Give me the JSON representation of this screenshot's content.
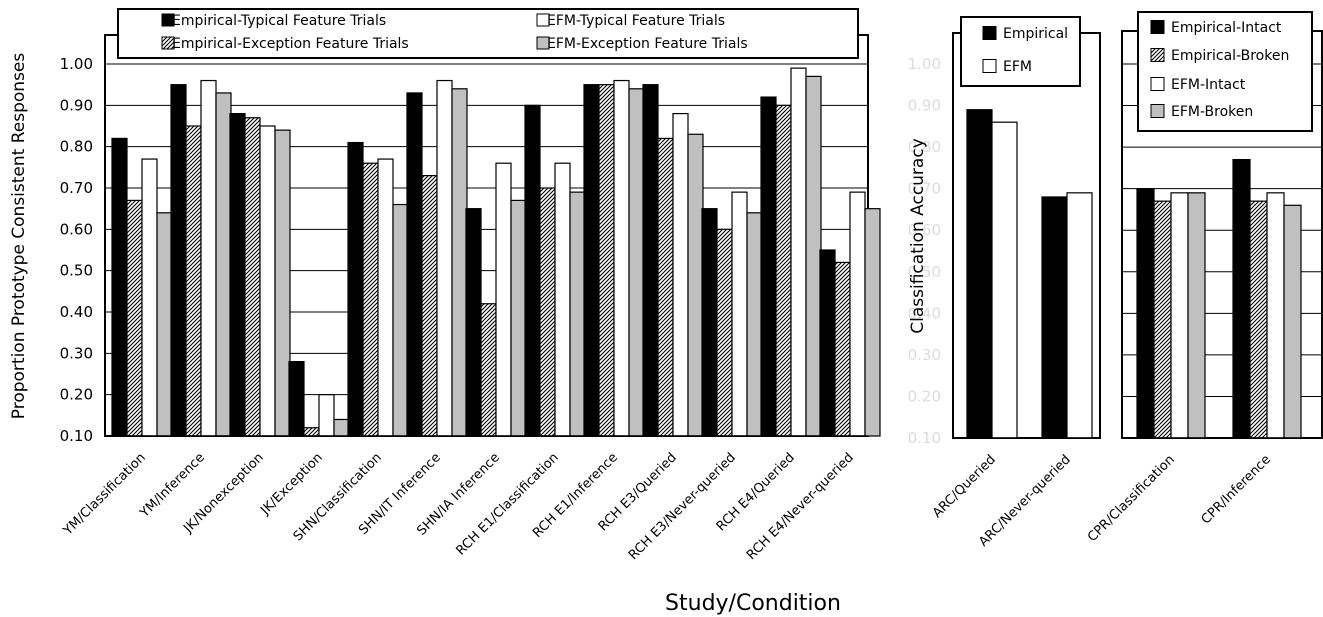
{
  "chart_data": [
    {
      "type": "bar",
      "ylabel": "Proportion Prototype Consistent Responses",
      "ylim": [
        0.1,
        1.0
      ],
      "yticks": [
        "0.10",
        "0.20",
        "0.30",
        "0.40",
        "0.50",
        "0.60",
        "0.70",
        "0.80",
        "0.90",
        "1.00"
      ],
      "grid": true,
      "legend": "top",
      "categories": [
        "YM/Classification",
        "YM/Inference",
        "JK/Nonexception",
        "JK/Exception",
        "SHN/Classification",
        "SHN/IT Inference",
        "SHN/IA Inference",
        "RCH E1/Classification",
        "RCH E1/Inference",
        "RCH E3/Queried",
        "RCH E3/Never-queried",
        "RCH E4/Queried",
        "RCH E4/Never-queried"
      ],
      "series": [
        {
          "name": "Empirical-Typical Feature Trials",
          "pattern": "black",
          "values": [
            0.82,
            0.95,
            0.88,
            0.28,
            0.81,
            0.93,
            0.65,
            0.9,
            0.95,
            0.95,
            0.65,
            0.92,
            0.55
          ]
        },
        {
          "name": "Empirical-Exception Feature Trials",
          "pattern": "hatch",
          "values": [
            0.67,
            0.85,
            0.87,
            0.12,
            0.76,
            0.73,
            0.42,
            0.7,
            0.95,
            0.82,
            0.6,
            0.9,
            0.52
          ]
        },
        {
          "name": "EFM-Typical Feature Trials",
          "pattern": "white",
          "values": [
            0.77,
            0.96,
            0.85,
            0.2,
            0.77,
            0.96,
            0.76,
            0.76,
            0.96,
            0.88,
            0.69,
            0.99,
            0.69
          ]
        },
        {
          "name": "EFM-Exception Feature Trials",
          "pattern": "gray",
          "values": [
            0.64,
            0.93,
            0.84,
            0.14,
            0.66,
            0.94,
            0.67,
            0.69,
            0.94,
            0.83,
            0.64,
            0.97,
            0.65
          ]
        }
      ]
    },
    {
      "type": "bar",
      "ylabel": "Classification Accuracy",
      "ylim": [
        0.1,
        1.0
      ],
      "yticks": [
        "0.10",
        "0.20",
        "0.30",
        "0.40",
        "0.50",
        "0.60",
        "0.70",
        "0.80",
        "0.90",
        "1.00"
      ],
      "ytick_style": "faint",
      "legend": "top",
      "categories": [
        "ARC/Queried",
        "ARC/Never-queried"
      ],
      "series": [
        {
          "name": "Empirical",
          "pattern": "black",
          "values": [
            0.89,
            0.68
          ]
        },
        {
          "name": "EFM",
          "pattern": "white",
          "values": [
            0.86,
            0.69
          ]
        }
      ]
    },
    {
      "type": "bar",
      "ylim": [
        0.1,
        1.0
      ],
      "grid": true,
      "legend": "top",
      "categories": [
        "CPR/Classification",
        "CPR/Inference"
      ],
      "series": [
        {
          "name": "Empirical-Intact",
          "pattern": "black",
          "values": [
            0.7,
            0.77
          ]
        },
        {
          "name": "Empirical-Broken",
          "pattern": "hatch",
          "values": [
            0.67,
            0.67
          ]
        },
        {
          "name": "EFM-Intact",
          "pattern": "white",
          "values": [
            0.69,
            0.69
          ]
        },
        {
          "name": "EFM-Broken",
          "pattern": "gray",
          "values": [
            0.69,
            0.66
          ]
        }
      ]
    }
  ],
  "xlabel": "Study/Condition"
}
